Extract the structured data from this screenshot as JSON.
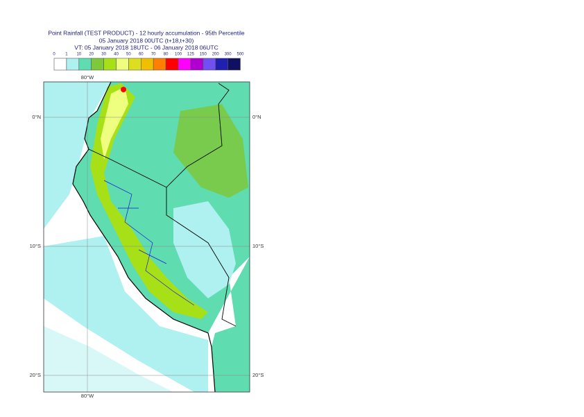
{
  "header": {
    "title_lines": [
      "Point Rainfall (TEST PRODUCT) - 12 hourly accumulation - 95th Percentile",
      "05 January 2018 00UTC (t+18,t+30)",
      "VT: 05 January 2018 18UTC - 06 January 2018 06UTC"
    ]
  },
  "legend": {
    "ticks": [
      0,
      1,
      10,
      20,
      30,
      40,
      50,
      60,
      70,
      80,
      100,
      125,
      150,
      200,
      300,
      500
    ],
    "colors": [
      "#ffffff",
      "#aff0f0",
      "#5fdcb0",
      "#7ec83c",
      "#a8e018",
      "#eeff80",
      "#dede20",
      "#f0c000",
      "#ff8000",
      "#ff0000",
      "#ff00ff",
      "#b000d0",
      "#7050f0",
      "#2020b0",
      "#101060"
    ]
  },
  "map": {
    "lon_labels": [
      "80°W"
    ],
    "lat_labels": [
      "0°N",
      "10°S",
      "20°S"
    ]
  }
}
